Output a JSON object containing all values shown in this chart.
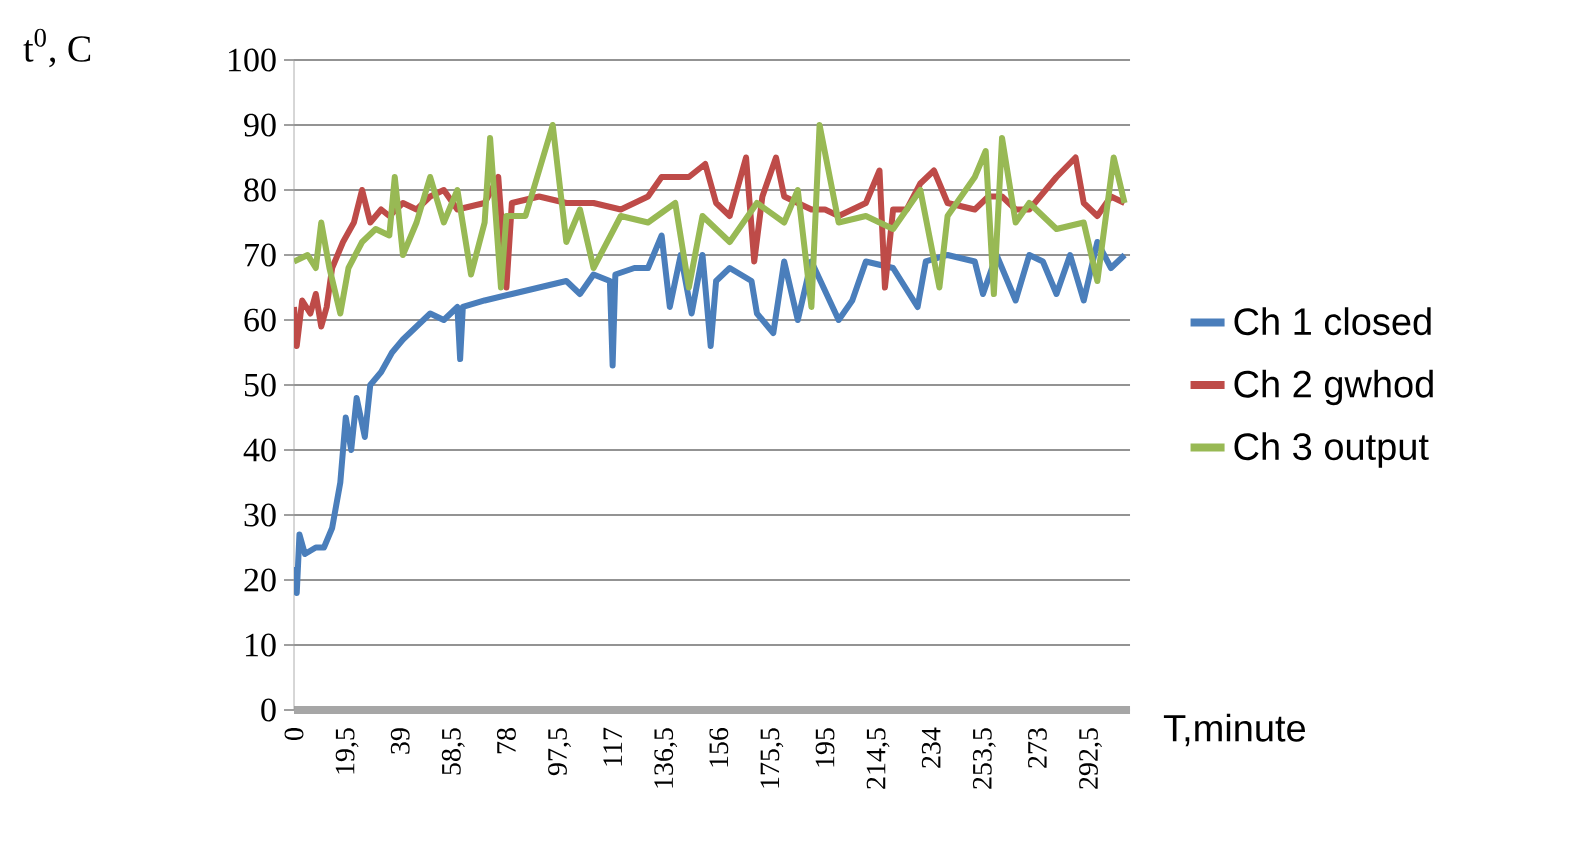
{
  "chart_data": {
    "type": "line",
    "xlabel": "T,minute",
    "ylabel": "t$^{0}$, C",
    "xlim": [
      0,
      307
    ],
    "ylim": [
      0,
      100
    ],
    "xticks": [
      0,
      {
        "value": 19.5,
        "label": "19,5"
      },
      39,
      {
        "value": 58.5,
        "label": "58,5"
      },
      78,
      {
        "value": 97.5,
        "label": "97,5"
      },
      117,
      {
        "value": 136.5,
        "label": "136,5"
      },
      156,
      {
        "value": 175.5,
        "label": "175,5"
      },
      195,
      {
        "value": 214.5,
        "label": "214,5"
      },
      234,
      {
        "value": 253.5,
        "label": "253,5"
      },
      273,
      {
        "value": 292.5,
        "label": "292,5"
      }
    ],
    "yticks": [
      0,
      10,
      20,
      30,
      40,
      50,
      60,
      70,
      80,
      90,
      100
    ],
    "grid": "y",
    "legend": "right",
    "series": [
      {
        "name": "Ch 1 closed",
        "color": "#4a7ebb",
        "x": [
          0,
          1,
          2,
          4,
          8,
          11,
          14,
          17,
          19,
          21,
          23,
          26,
          28,
          32,
          36,
          40,
          45,
          50,
          55,
          60,
          61,
          62,
          70,
          80,
          90,
          100,
          105,
          110,
          116,
          117,
          118,
          125,
          130,
          135,
          138,
          142,
          146,
          150,
          153,
          155,
          160,
          168,
          170,
          176,
          180,
          185,
          190,
          200,
          205,
          210,
          220,
          229,
          232,
          240,
          250,
          253,
          258,
          265,
          270,
          275,
          280,
          285,
          290,
          295,
          300,
          305
        ],
        "values": [
          22,
          18,
          27,
          24,
          25,
          25,
          28,
          35,
          45,
          40,
          48,
          42,
          50,
          52,
          55,
          57,
          59,
          61,
          60,
          62,
          54,
          62,
          63,
          64,
          65,
          66,
          64,
          67,
          66,
          53,
          67,
          68,
          68,
          73,
          62,
          70,
          61,
          70,
          56,
          66,
          68,
          66,
          61,
          58,
          69,
          60,
          69,
          60,
          63,
          69,
          68,
          62,
          69,
          70,
          69,
          64,
          70,
          63,
          70,
          69,
          64,
          70,
          63,
          72,
          68,
          70
        ]
      },
      {
        "name": "Ch 2 gwhod",
        "color": "#be4b48",
        "x": [
          0,
          1,
          3,
          6,
          8,
          10,
          12,
          14,
          18,
          22,
          25,
          28,
          32,
          35,
          40,
          45,
          50,
          55,
          60,
          70,
          75,
          78,
          80,
          90,
          100,
          110,
          120,
          130,
          135,
          145,
          151,
          155,
          160,
          166,
          169,
          172,
          177,
          180,
          185,
          190,
          195,
          200,
          210,
          215,
          217,
          220,
          225,
          230,
          235,
          240,
          250,
          255,
          260,
          265,
          270,
          280,
          287,
          290,
          295,
          300,
          305
        ],
        "values": [
          62,
          56,
          63,
          61,
          64,
          59,
          62,
          68,
          72,
          75,
          80,
          75,
          77,
          76,
          78,
          77,
          79,
          80,
          77,
          78,
          82,
          65,
          78,
          79,
          78,
          78,
          77,
          79,
          82,
          82,
          84,
          78,
          76,
          85,
          69,
          79,
          85,
          79,
          78,
          77,
          77,
          76,
          78,
          83,
          65,
          77,
          77,
          81,
          83,
          78,
          77,
          79,
          79,
          77,
          77,
          82,
          85,
          78,
          76,
          79,
          78
        ]
      },
      {
        "name": "Ch 3 output",
        "color": "#98b954",
        "x": [
          0,
          5,
          8,
          10,
          13,
          17,
          20,
          25,
          30,
          35,
          37,
          40,
          45,
          50,
          55,
          60,
          65,
          70,
          72,
          76,
          78,
          85,
          90,
          95,
          100,
          105,
          110,
          120,
          130,
          140,
          145,
          150,
          160,
          170,
          180,
          185,
          190,
          193,
          200,
          210,
          220,
          230,
          237,
          240,
          250,
          254,
          257,
          260,
          265,
          270,
          280,
          290,
          295,
          301,
          305
        ],
        "values": [
          69,
          70,
          68,
          75,
          68,
          61,
          68,
          72,
          74,
          73,
          82,
          70,
          75,
          82,
          75,
          80,
          67,
          75,
          88,
          65,
          76,
          76,
          83,
          90,
          72,
          77,
          68,
          76,
          75,
          78,
          65,
          76,
          72,
          78,
          75,
          80,
          62,
          90,
          75,
          76,
          74,
          80,
          65,
          76,
          82,
          86,
          64,
          88,
          75,
          78,
          74,
          75,
          66,
          85,
          78
        ]
      }
    ]
  }
}
